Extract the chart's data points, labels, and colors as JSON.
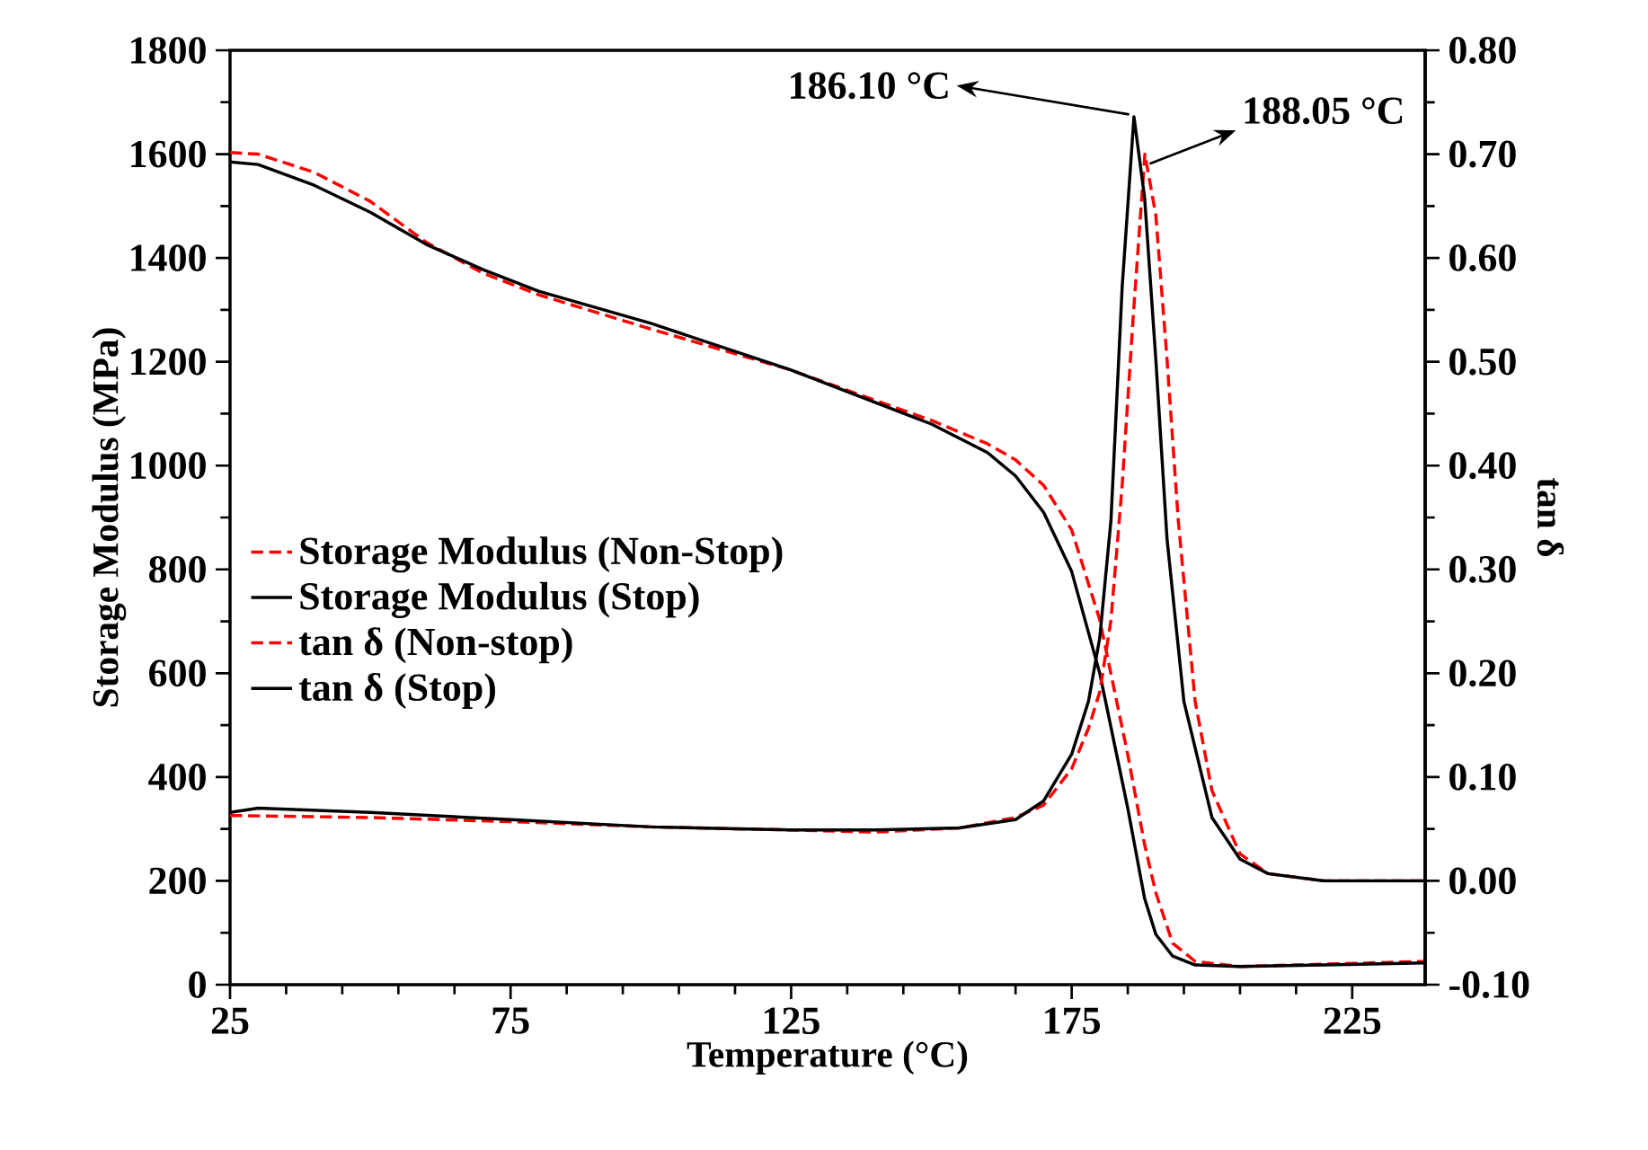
{
  "chart_data": {
    "type": "line",
    "xlabel": "Temperature (°C)",
    "ylabel": "Storage Modulus (MPa)",
    "y2label": "tan δ",
    "xlim": [
      25,
      238
    ],
    "xticks": [
      25,
      75,
      125,
      175,
      225
    ],
    "ylim": [
      0,
      1800
    ],
    "yticks": [
      0,
      200,
      400,
      600,
      800,
      1000,
      1200,
      1400,
      1600,
      1800
    ],
    "y2lim": [
      -0.1,
      0.8
    ],
    "y2ticks": [
      {
        "value": -0.1,
        "label": "-0.10"
      },
      {
        "value": 0.0,
        "label": "0.00"
      },
      {
        "value": 0.1,
        "label": "0.10"
      },
      {
        "value": 0.2,
        "label": "0.20"
      },
      {
        "value": 0.3,
        "label": "0.30"
      },
      {
        "value": 0.4,
        "label": "0.40"
      },
      {
        "value": 0.5,
        "label": "0.50"
      },
      {
        "value": 0.6,
        "label": "0.60"
      },
      {
        "value": 0.7,
        "label": "0.70"
      },
      {
        "value": 0.8,
        "label": "0.80"
      }
    ],
    "legend": "left",
    "marker": "none",
    "annotations": [
      "186.10 °C",
      "188.05 °C"
    ],
    "series": [
      {
        "name": "Storage Modulus (Non-Stop)",
        "color": "#ff0000",
        "line_style": "dashed",
        "x": [
          25,
          30,
          40,
          50,
          60,
          70,
          80,
          100,
          125,
          150,
          160,
          165,
          170,
          175,
          180,
          185,
          188,
          190,
          193,
          197,
          205,
          238
        ],
        "values": [
          1603,
          1600,
          1565,
          1509,
          1430,
          1371,
          1329,
          1263,
          1184,
          1087,
          1042,
          1011,
          962,
          876,
          703,
          443,
          270,
          177,
          80,
          45,
          35,
          45
        ]
      },
      {
        "name": "Storage Modulus (Stop)",
        "color": "#000000",
        "line_style": "solid",
        "x": [
          25,
          30,
          40,
          50,
          60,
          70,
          80,
          100,
          125,
          150,
          160,
          165,
          170,
          175,
          180,
          185,
          188,
          190,
          193,
          197,
          205,
          238
        ],
        "values": [
          1585,
          1580,
          1540,
          1488,
          1426,
          1378,
          1336,
          1274,
          1184,
          1080,
          1025,
          980,
          910,
          796,
          600,
          340,
          166,
          97,
          55,
          38,
          35,
          42
        ]
      },
      {
        "name": "tan δ (Non-stop)",
        "color": "#ff0000",
        "line_style": "dashed",
        "axis": "y2",
        "x": [
          25,
          50,
          75,
          100,
          125,
          140,
          155,
          165,
          170,
          175,
          178,
          180,
          182,
          184,
          186,
          188.05,
          190,
          192,
          194,
          197,
          200,
          205,
          210,
          220,
          238
        ],
        "values": [
          0.063,
          0.061,
          0.057,
          0.052,
          0.049,
          0.047,
          0.051,
          0.061,
          0.073,
          0.108,
          0.147,
          0.182,
          0.251,
          0.381,
          0.546,
          0.7,
          0.641,
          0.502,
          0.347,
          0.173,
          0.087,
          0.026,
          0.007,
          0.0,
          0.0
        ]
      },
      {
        "name": "tan δ (Stop)",
        "color": "#000000",
        "line_style": "solid",
        "axis": "y2",
        "x": [
          25,
          30,
          50,
          75,
          100,
          125,
          140,
          155,
          165,
          170,
          175,
          178,
          180,
          182,
          184,
          186.1,
          188,
          190,
          192,
          195,
          200,
          205,
          210,
          220,
          238
        ],
        "values": [
          0.066,
          0.07,
          0.066,
          0.059,
          0.052,
          0.049,
          0.049,
          0.051,
          0.059,
          0.077,
          0.122,
          0.173,
          0.234,
          0.347,
          0.572,
          0.736,
          0.658,
          0.502,
          0.329,
          0.173,
          0.061,
          0.021,
          0.007,
          0.0,
          0.0
        ]
      }
    ]
  }
}
